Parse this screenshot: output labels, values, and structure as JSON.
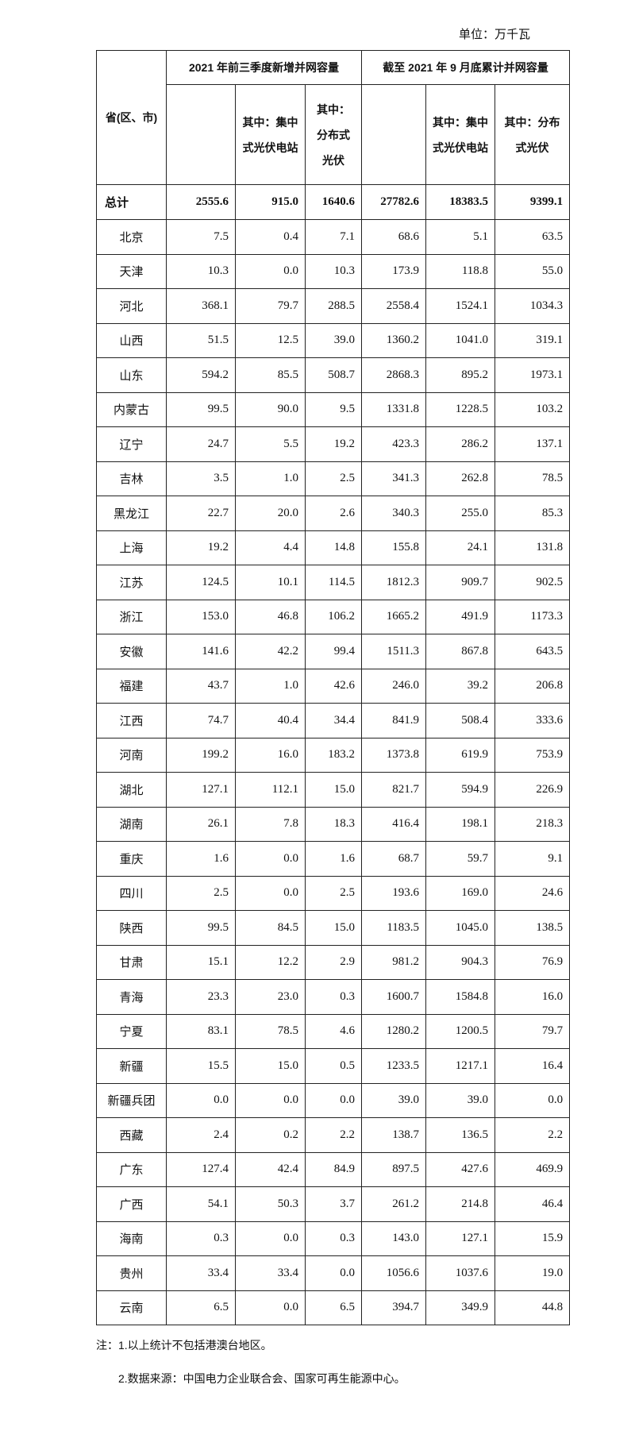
{
  "unit_label": "单位：万千瓦",
  "headers": {
    "region": "省(区、市)",
    "group1": "2021 年前三季度新增并网容量",
    "group2": "截至 2021 年 9 月底累计并网容量",
    "sub_centralized": "其中：集中式光伏电站",
    "sub_distributed_1": "其中：分布式光伏",
    "sub_centralized_2": "其中：集中式光伏电站",
    "sub_distributed_2": "其中：分布式光伏"
  },
  "total": {
    "name": "总计",
    "values": [
      "2555.6",
      "915.0",
      "1640.6",
      "27782.6",
      "18383.5",
      "9399.1"
    ]
  },
  "rows": [
    {
      "name": "北京",
      "values": [
        "7.5",
        "0.4",
        "7.1",
        "68.6",
        "5.1",
        "63.5"
      ]
    },
    {
      "name": "天津",
      "values": [
        "10.3",
        "0.0",
        "10.3",
        "173.9",
        "118.8",
        "55.0"
      ]
    },
    {
      "name": "河北",
      "values": [
        "368.1",
        "79.7",
        "288.5",
        "2558.4",
        "1524.1",
        "1034.3"
      ]
    },
    {
      "name": "山西",
      "values": [
        "51.5",
        "12.5",
        "39.0",
        "1360.2",
        "1041.0",
        "319.1"
      ]
    },
    {
      "name": "山东",
      "values": [
        "594.2",
        "85.5",
        "508.7",
        "2868.3",
        "895.2",
        "1973.1"
      ]
    },
    {
      "name": "内蒙古",
      "values": [
        "99.5",
        "90.0",
        "9.5",
        "1331.8",
        "1228.5",
        "103.2"
      ]
    },
    {
      "name": "辽宁",
      "values": [
        "24.7",
        "5.5",
        "19.2",
        "423.3",
        "286.2",
        "137.1"
      ]
    },
    {
      "name": "吉林",
      "values": [
        "3.5",
        "1.0",
        "2.5",
        "341.3",
        "262.8",
        "78.5"
      ]
    },
    {
      "name": "黑龙江",
      "values": [
        "22.7",
        "20.0",
        "2.6",
        "340.3",
        "255.0",
        "85.3"
      ]
    },
    {
      "name": "上海",
      "values": [
        "19.2",
        "4.4",
        "14.8",
        "155.8",
        "24.1",
        "131.8"
      ]
    },
    {
      "name": "江苏",
      "values": [
        "124.5",
        "10.1",
        "114.5",
        "1812.3",
        "909.7",
        "902.5"
      ]
    },
    {
      "name": "浙江",
      "values": [
        "153.0",
        "46.8",
        "106.2",
        "1665.2",
        "491.9",
        "1173.3"
      ]
    },
    {
      "name": "安徽",
      "values": [
        "141.6",
        "42.2",
        "99.4",
        "1511.3",
        "867.8",
        "643.5"
      ]
    },
    {
      "name": "福建",
      "values": [
        "43.7",
        "1.0",
        "42.6",
        "246.0",
        "39.2",
        "206.8"
      ]
    },
    {
      "name": "江西",
      "values": [
        "74.7",
        "40.4",
        "34.4",
        "841.9",
        "508.4",
        "333.6"
      ]
    },
    {
      "name": "河南",
      "values": [
        "199.2",
        "16.0",
        "183.2",
        "1373.8",
        "619.9",
        "753.9"
      ]
    },
    {
      "name": "湖北",
      "values": [
        "127.1",
        "112.1",
        "15.0",
        "821.7",
        "594.9",
        "226.9"
      ]
    },
    {
      "name": "湖南",
      "values": [
        "26.1",
        "7.8",
        "18.3",
        "416.4",
        "198.1",
        "218.3"
      ]
    },
    {
      "name": "重庆",
      "values": [
        "1.6",
        "0.0",
        "1.6",
        "68.7",
        "59.7",
        "9.1"
      ]
    },
    {
      "name": "四川",
      "values": [
        "2.5",
        "0.0",
        "2.5",
        "193.6",
        "169.0",
        "24.6"
      ]
    },
    {
      "name": "陕西",
      "values": [
        "99.5",
        "84.5",
        "15.0",
        "1183.5",
        "1045.0",
        "138.5"
      ]
    },
    {
      "name": "甘肃",
      "values": [
        "15.1",
        "12.2",
        "2.9",
        "981.2",
        "904.3",
        "76.9"
      ]
    },
    {
      "name": "青海",
      "values": [
        "23.3",
        "23.0",
        "0.3",
        "1600.7",
        "1584.8",
        "16.0"
      ]
    },
    {
      "name": "宁夏",
      "values": [
        "83.1",
        "78.5",
        "4.6",
        "1280.2",
        "1200.5",
        "79.7"
      ]
    },
    {
      "name": "新疆",
      "values": [
        "15.5",
        "15.0",
        "0.5",
        "1233.5",
        "1217.1",
        "16.4"
      ]
    },
    {
      "name": "新疆兵团",
      "values": [
        "0.0",
        "0.0",
        "0.0",
        "39.0",
        "39.0",
        "0.0"
      ]
    },
    {
      "name": "西藏",
      "values": [
        "2.4",
        "0.2",
        "2.2",
        "138.7",
        "136.5",
        "2.2"
      ]
    },
    {
      "name": "广东",
      "values": [
        "127.4",
        "42.4",
        "84.9",
        "897.5",
        "427.6",
        "469.9"
      ]
    },
    {
      "name": "广西",
      "values": [
        "54.1",
        "50.3",
        "3.7",
        "261.2",
        "214.8",
        "46.4"
      ]
    },
    {
      "name": "海南",
      "values": [
        "0.3",
        "0.0",
        "0.3",
        "143.0",
        "127.1",
        "15.9"
      ]
    },
    {
      "name": "贵州",
      "values": [
        "33.4",
        "33.4",
        "0.0",
        "1056.6",
        "1037.6",
        "19.0"
      ]
    },
    {
      "name": "云南",
      "values": [
        "6.5",
        "0.0",
        "6.5",
        "394.7",
        "349.9",
        "44.8"
      ]
    }
  ],
  "notes": [
    "注：1.以上统计不包括港澳台地区。",
    "2.数据来源：中国电力企业联合会、国家可再生能源中心。"
  ]
}
